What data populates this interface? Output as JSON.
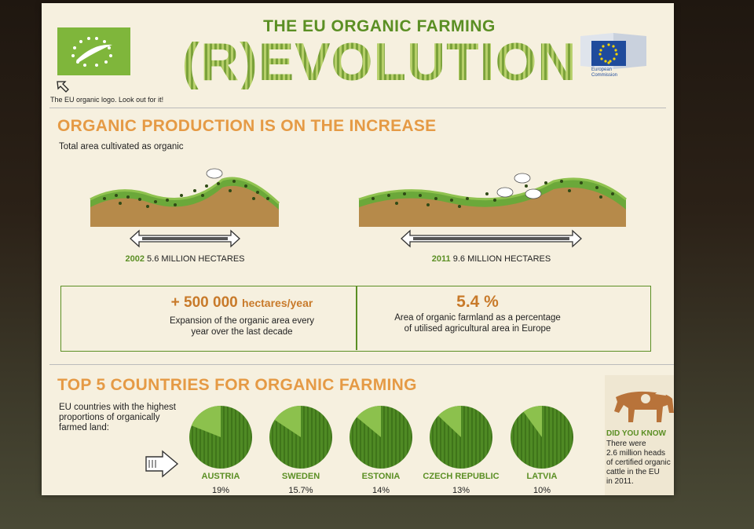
{
  "header": {
    "title_top": "THE EU ORGANIC FARMING",
    "title_big": "(R)EVOLUTION",
    "logo_caption": "The EU organic logo. Look out for it!",
    "commission_label_1": "European",
    "commission_label_2": "Commission"
  },
  "production": {
    "title": "ORGANIC PRODUCTION IS ON THE INCREASE",
    "subtitle": "Total area cultivated as organic",
    "land_2002": {
      "year": "2002",
      "text": "5.6 MILLION HECTARES"
    },
    "land_2011": {
      "year": "2011",
      "text": "9.6 MILLION HECTARES"
    },
    "stat_1": {
      "value": "+ 500 000",
      "unit": "hectares/year",
      "desc_1": "Expansion of the organic area every",
      "desc_2": "year over the last decade"
    },
    "stat_2": {
      "value": "5.4 %",
      "desc_1": "Area of organic farmland as a percentage",
      "desc_2": "of utilised agricultural area in Europe"
    }
  },
  "countries": {
    "title": "TOP 5 COUNTRIES FOR ORGANIC FARMING",
    "subtitle_1": "EU countries with the highest",
    "subtitle_2": "proportions of organically",
    "subtitle_3": "farmed land:",
    "items": [
      {
        "name": "AUSTRIA",
        "pct": "19%",
        "share": 0.19
      },
      {
        "name": "SWEDEN",
        "pct": "15.7%",
        "share": 0.157
      },
      {
        "name": "ESTONIA",
        "pct": "14%",
        "share": 0.14
      },
      {
        "name": "CZECH REPUBLIC",
        "pct": "13%",
        "share": 0.13
      },
      {
        "name": "LATVIA",
        "pct": "10%",
        "share": 0.1
      }
    ]
  },
  "did_you_know": {
    "title": "DID YOU KNOW",
    "line_1": "There were",
    "line_2": "2.6 million heads",
    "line_3": "of certified organic",
    "line_4": "cattle in the EU",
    "line_5": "in 2011."
  },
  "colors": {
    "green": "#5b8f24",
    "orange": "#e59a45",
    "eu_blue": "#1f4b9c"
  }
}
